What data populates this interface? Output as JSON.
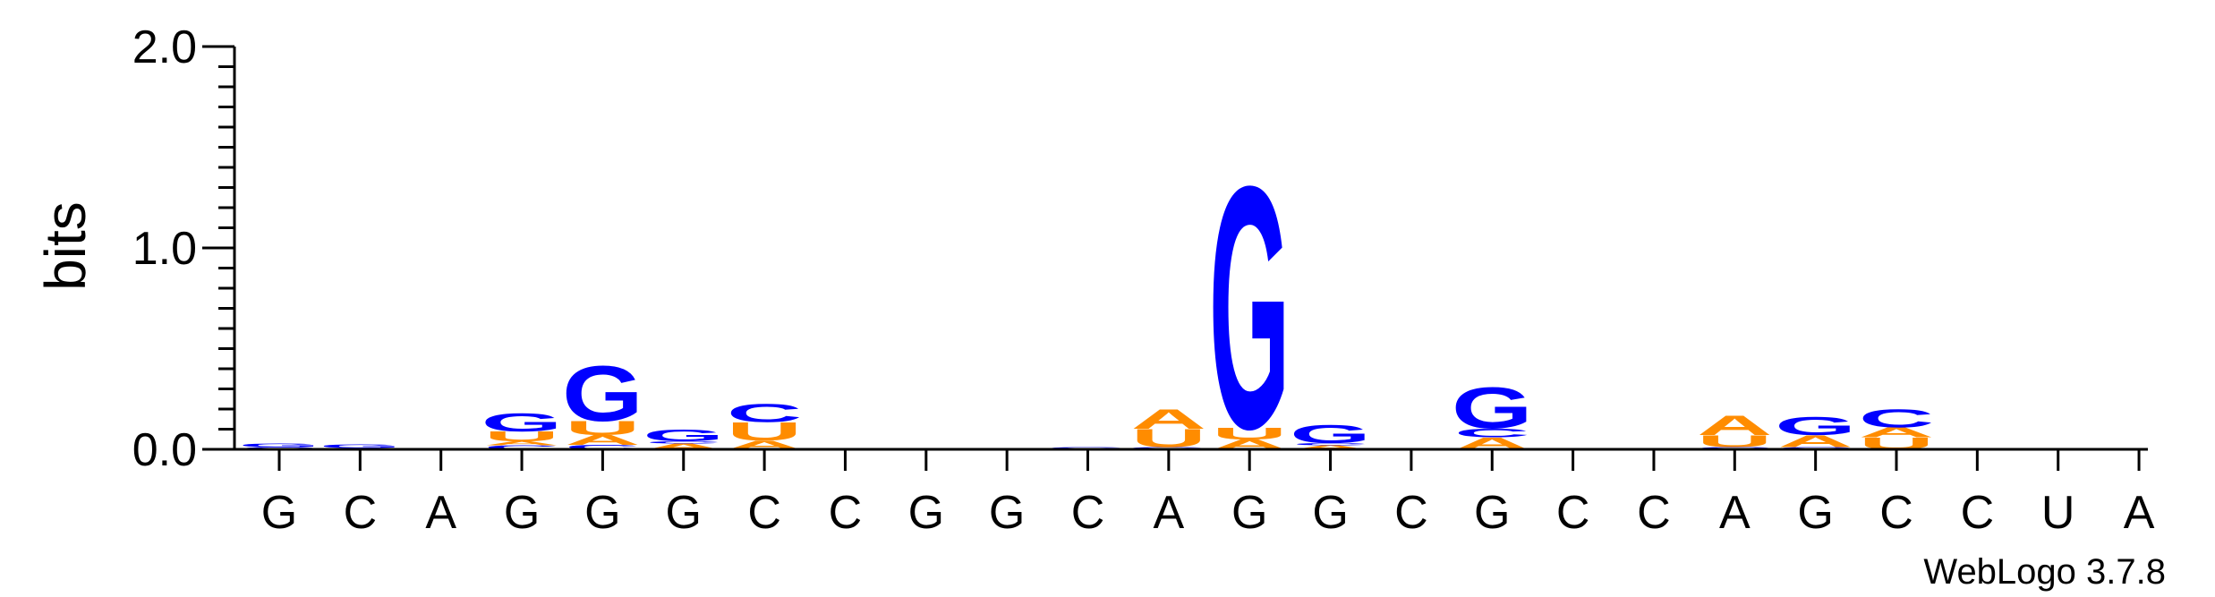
{
  "chart_data": {
    "type": "sequence-logo",
    "ylabel": "bits",
    "ylim": [
      0,
      2.0
    ],
    "yticks": [
      "0.0",
      "1.0",
      "2.0"
    ],
    "ytick_values": [
      0,
      1,
      2
    ],
    "yminor_step": 0.1,
    "positions": [
      "G",
      "C",
      "A",
      "G",
      "G",
      "G",
      "C",
      "C",
      "G",
      "G",
      "C",
      "A",
      "G",
      "G",
      "C",
      "G",
      "C",
      "C",
      "A",
      "G",
      "C",
      "C",
      "U",
      "A"
    ],
    "colors": {
      "G": "#0000ff",
      "C": "#0000ff",
      "A": "#ff8c00",
      "U": "#ff8c00"
    },
    "stacks": [
      [
        {
          "l": "C",
          "h": 0.012
        },
        {
          "l": "G",
          "h": 0.018
        }
      ],
      [
        {
          "l": "A",
          "h": 0.006
        },
        {
          "l": "G",
          "h": 0.016
        }
      ],
      [],
      [
        {
          "l": "C",
          "h": 0.02
        },
        {
          "l": "A",
          "h": 0.02
        },
        {
          "l": "U",
          "h": 0.05
        },
        {
          "l": "G",
          "h": 0.09
        }
      ],
      [
        {
          "l": "C",
          "h": 0.022
        },
        {
          "l": "A",
          "h": 0.05
        },
        {
          "l": "U",
          "h": 0.07
        },
        {
          "l": "G",
          "h": 0.28
        }
      ],
      [
        {
          "l": "A",
          "h": 0.03
        },
        {
          "l": "C",
          "h": 0.01
        },
        {
          "l": "G",
          "h": 0.06
        }
      ],
      [
        {
          "l": "A",
          "h": 0.045
        },
        {
          "l": "U",
          "h": 0.09
        },
        {
          "l": "C",
          "h": 0.09
        }
      ],
      [],
      [],
      [],
      [
        {
          "l": "G",
          "h": 0.01
        }
      ],
      [
        {
          "l": "G",
          "h": 0.012
        },
        {
          "l": "U",
          "h": 0.09
        },
        {
          "l": "A",
          "h": 0.1
        }
      ],
      [
        {
          "l": "A",
          "h": 0.05
        },
        {
          "l": "U",
          "h": 0.06
        },
        {
          "l": "G",
          "h": 1.23
        }
      ],
      [
        {
          "l": "A",
          "h": 0.02
        },
        {
          "l": "C",
          "h": 0.012
        },
        {
          "l": "G",
          "h": 0.09
        }
      ],
      [],
      [
        {
          "l": "A",
          "h": 0.06
        },
        {
          "l": "C",
          "h": 0.045
        },
        {
          "l": "G",
          "h": 0.21
        }
      ],
      [],
      [],
      [
        {
          "l": "C",
          "h": 0.012
        },
        {
          "l": "U",
          "h": 0.06
        },
        {
          "l": "A",
          "h": 0.1
        }
      ],
      [
        {
          "l": "C",
          "h": 0.012
        },
        {
          "l": "A",
          "h": 0.06
        },
        {
          "l": "G",
          "h": 0.09
        }
      ],
      [
        {
          "l": "U",
          "h": 0.06
        },
        {
          "l": "A",
          "h": 0.05
        },
        {
          "l": "C",
          "h": 0.09
        }
      ],
      [],
      [],
      []
    ],
    "credit": "WebLogo 3.7.8"
  }
}
